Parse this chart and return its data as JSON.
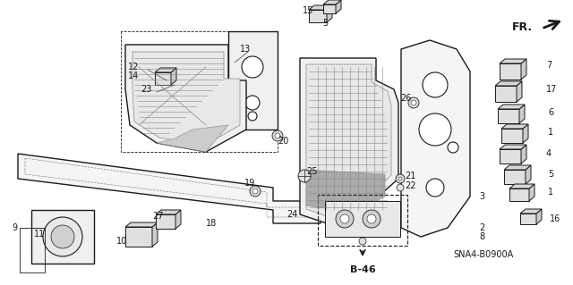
{
  "bg_color": "#ffffff",
  "fig_width": 6.4,
  "fig_height": 3.19,
  "diagram_code": "SNA4-B0900A",
  "b46_label": "B-46",
  "fr_label": "FR.",
  "line_color": "#1a1a1a",
  "gray": "#888888"
}
